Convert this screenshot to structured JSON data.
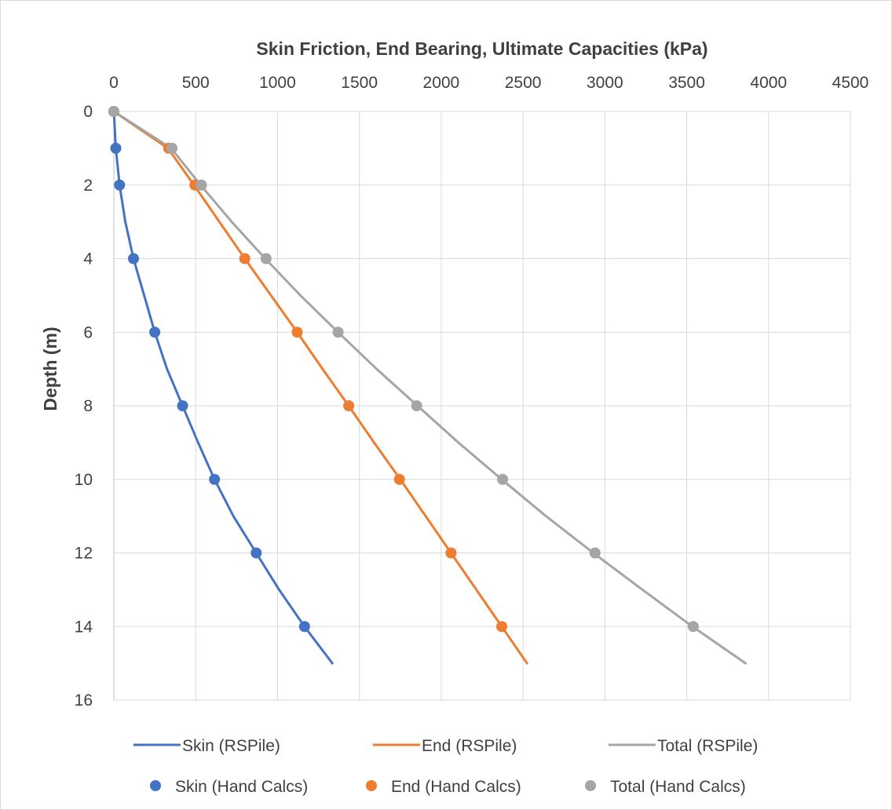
{
  "chart_data": {
    "type": "scatter",
    "x_axis": {
      "title": "Skin Friction, End Bearing, Ultimate Capacities (kPa)",
      "position": "top",
      "range": [
        0,
        4500
      ],
      "ticks": [
        0,
        500,
        1000,
        1500,
        2000,
        2500,
        3000,
        3500,
        4000,
        4500
      ],
      "tick_labels": [
        "0",
        "500",
        "1000",
        "1500",
        "2000",
        "2500",
        "3000",
        "3500",
        "4000",
        "4500"
      ]
    },
    "y_axis": {
      "title": "Depth (m)",
      "range": [
        0,
        16
      ],
      "reversed": true,
      "ticks": [
        0,
        2,
        4,
        6,
        8,
        10,
        12,
        14,
        16
      ],
      "tick_labels": [
        "0",
        "2",
        "4",
        "6",
        "8",
        "10",
        "12",
        "14",
        "16"
      ]
    },
    "grid": true,
    "legend_placement": "bottom",
    "series": [
      {
        "name": "Skin (RSPile)",
        "kind": "line",
        "color": "#4472C4",
        "points": [
          [
            0,
            0
          ],
          [
            12,
            1
          ],
          [
            35,
            2
          ],
          [
            70,
            3
          ],
          [
            120,
            4
          ],
          [
            185,
            5
          ],
          [
            250,
            6
          ],
          [
            325,
            7
          ],
          [
            420,
            8
          ],
          [
            515,
            9
          ],
          [
            615,
            10
          ],
          [
            730,
            11
          ],
          [
            870,
            12
          ],
          [
            1010,
            13
          ],
          [
            1165,
            14
          ],
          [
            1335,
            15
          ]
        ]
      },
      {
        "name": "End (RSPile)",
        "kind": "line",
        "color": "#ED7D31",
        "points": [
          [
            0,
            0
          ],
          [
            330,
            1
          ],
          [
            490,
            2
          ],
          [
            645,
            3
          ],
          [
            800,
            4
          ],
          [
            960,
            5
          ],
          [
            1120,
            6
          ],
          [
            1275,
            7
          ],
          [
            1435,
            8
          ],
          [
            1590,
            9
          ],
          [
            1750,
            10
          ],
          [
            1905,
            11
          ],
          [
            2060,
            12
          ],
          [
            2215,
            13
          ],
          [
            2370,
            14
          ],
          [
            2525,
            15
          ]
        ]
      },
      {
        "name": "Total (RSPile)",
        "kind": "line",
        "color": "#A5A5A5",
        "points": [
          [
            0,
            0
          ],
          [
            350,
            1
          ],
          [
            530,
            2
          ],
          [
            720,
            3
          ],
          [
            925,
            4
          ],
          [
            1140,
            5
          ],
          [
            1370,
            6
          ],
          [
            1605,
            7
          ],
          [
            1855,
            8
          ],
          [
            2105,
            9
          ],
          [
            2370,
            10
          ],
          [
            2640,
            11
          ],
          [
            2930,
            12
          ],
          [
            3230,
            13
          ],
          [
            3535,
            14
          ],
          [
            3860,
            15
          ]
        ]
      },
      {
        "name": "Skin (Hand Calcs)",
        "kind": "marker",
        "color": "#4472C4",
        "points": [
          [
            0,
            0
          ],
          [
            12,
            1
          ],
          [
            35,
            2
          ],
          [
            120,
            4
          ],
          [
            250,
            6
          ],
          [
            420,
            8
          ],
          [
            615,
            10
          ],
          [
            870,
            12
          ],
          [
            1165,
            14
          ]
        ]
      },
      {
        "name": "End (Hand Calcs)",
        "kind": "marker",
        "color": "#ED7D31",
        "points": [
          [
            0,
            0
          ],
          [
            335,
            1
          ],
          [
            495,
            2
          ],
          [
            800,
            4
          ],
          [
            1120,
            6
          ],
          [
            1435,
            8
          ],
          [
            1745,
            10
          ],
          [
            2060,
            12
          ],
          [
            2370,
            14
          ]
        ]
      },
      {
        "name": "Total (Hand Calcs)",
        "kind": "marker",
        "color": "#A5A5A5",
        "points": [
          [
            0,
            0
          ],
          [
            355,
            1
          ],
          [
            535,
            2
          ],
          [
            930,
            4
          ],
          [
            1370,
            6
          ],
          [
            1850,
            8
          ],
          [
            2375,
            10
          ],
          [
            2940,
            12
          ],
          [
            3540,
            14
          ]
        ]
      }
    ]
  }
}
